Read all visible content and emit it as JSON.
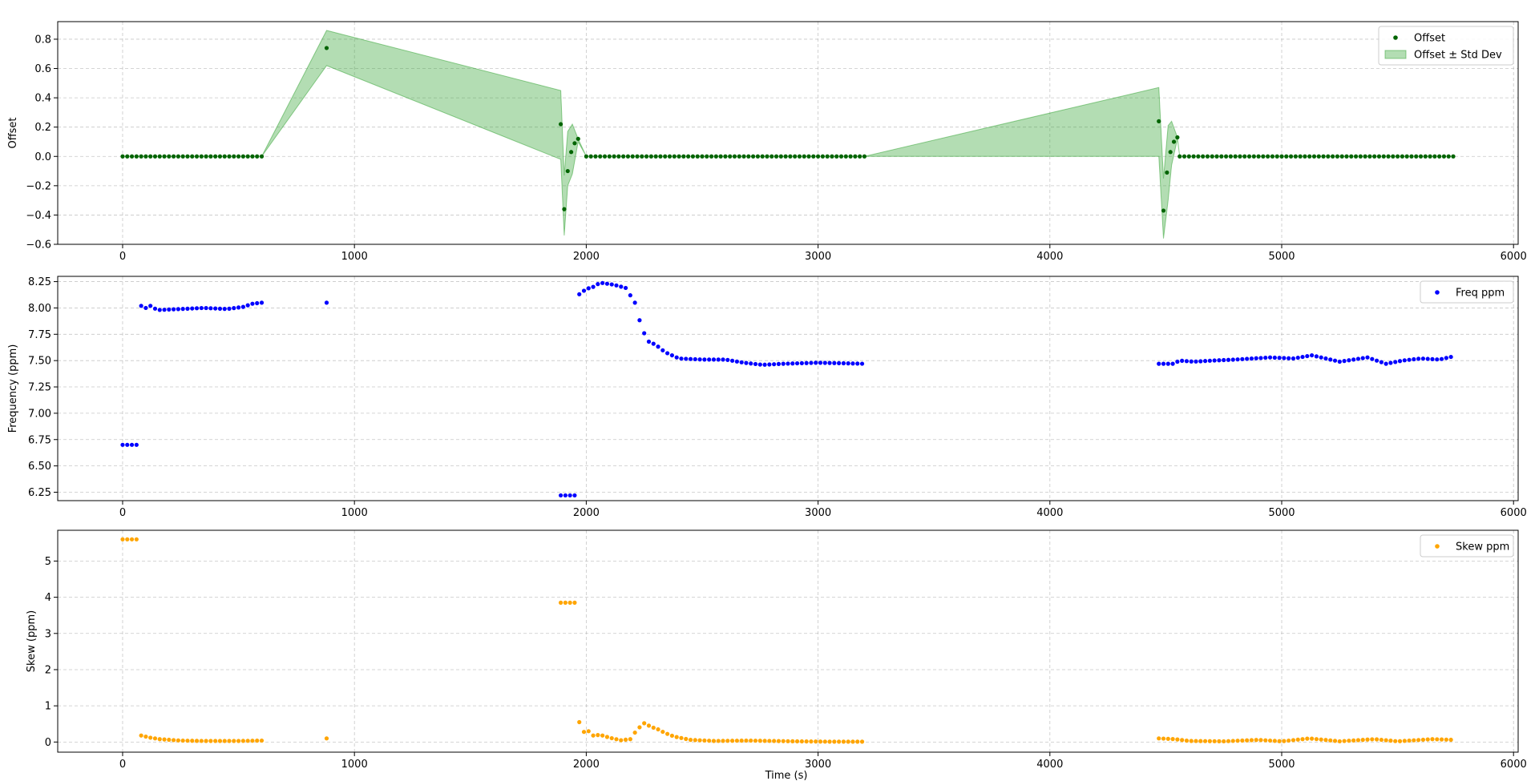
{
  "chart_data": [
    {
      "type": "scatter",
      "ylabel": "Offset",
      "xlabel": "",
      "xlim": [
        -280,
        6020
      ],
      "ylim": [
        -0.6,
        0.92
      ],
      "xticks": [
        0,
        1000,
        2000,
        3000,
        4000,
        5000,
        6000
      ],
      "xtick_labels": [
        "0",
        "1000",
        "2000",
        "3000",
        "4000",
        "5000",
        "6000"
      ],
      "yticks": [
        -0.6,
        -0.4,
        -0.2,
        0.0,
        0.2,
        0.4,
        0.6,
        0.8
      ],
      "ytick_labels": [
        "−0.6",
        "−0.4",
        "−0.2",
        "0.0",
        "0.2",
        "0.4",
        "0.6",
        "0.8"
      ],
      "grid": true,
      "legend_position": "upper-right",
      "legend": [
        {
          "label": "Offset",
          "kind": "point",
          "color": "#006400"
        },
        {
          "label": "Offset ± Std Dev",
          "kind": "patch",
          "color": "#2ca02c"
        }
      ],
      "series": [
        {
          "name": "Offset",
          "color": "#006400",
          "runs": [
            {
              "start": 0,
              "end": 600,
              "step": 20,
              "y": 0.0
            },
            {
              "start": 2000,
              "end": 3200,
              "step": 20,
              "y": 0.0
            },
            {
              "start": 4560,
              "end": 5740,
              "step": 20,
              "y": 0.0
            }
          ],
          "points": [
            [
              880,
              0.74
            ],
            [
              1890,
              0.22
            ],
            [
              1905,
              -0.36
            ],
            [
              1920,
              -0.1
            ],
            [
              1935,
              0.03
            ],
            [
              1950,
              0.09
            ],
            [
              1965,
              0.12
            ],
            [
              4470,
              0.24
            ],
            [
              4490,
              -0.37
            ],
            [
              4505,
              -0.11
            ],
            [
              4520,
              0.03
            ],
            [
              4535,
              0.1
            ],
            [
              4550,
              0.13
            ]
          ]
        }
      ],
      "band": {
        "name": "Offset ± Std Dev",
        "color": "#2ca02c",
        "opacity": 0.36,
        "upper": [
          [
            0,
            0
          ],
          [
            600,
            0
          ],
          [
            880,
            0.86
          ],
          [
            1890,
            0.45
          ],
          [
            1905,
            -0.13
          ],
          [
            1920,
            0.17
          ],
          [
            1940,
            0.22
          ],
          [
            1965,
            0.12
          ],
          [
            2000,
            0
          ],
          [
            3200,
            0
          ],
          [
            4470,
            0.47
          ],
          [
            4490,
            -0.15
          ],
          [
            4510,
            0.21
          ],
          [
            4525,
            0.24
          ],
          [
            4550,
            0.13
          ],
          [
            4560,
            0
          ],
          [
            5740,
            0
          ]
        ],
        "lower": [
          [
            0,
            0
          ],
          [
            600,
            0
          ],
          [
            880,
            0.62
          ],
          [
            1890,
            -0.02
          ],
          [
            1905,
            -0.54
          ],
          [
            1920,
            -0.2
          ],
          [
            1940,
            -0.12
          ],
          [
            1965,
            0.1
          ],
          [
            2000,
            0
          ],
          [
            3200,
            0
          ],
          [
            4470,
            0.0
          ],
          [
            4490,
            -0.56
          ],
          [
            4510,
            -0.3
          ],
          [
            4525,
            -0.06
          ],
          [
            4550,
            0.12
          ],
          [
            4560,
            0
          ],
          [
            5740,
            0
          ]
        ]
      }
    },
    {
      "type": "scatter",
      "ylabel": "Frequency (ppm)",
      "xlabel": "",
      "xlim": [
        -280,
        6020
      ],
      "ylim": [
        6.17,
        8.3
      ],
      "xticks": [
        0,
        1000,
        2000,
        3000,
        4000,
        5000,
        6000
      ],
      "xtick_labels": [
        "0",
        "1000",
        "2000",
        "3000",
        "4000",
        "5000",
        "6000"
      ],
      "yticks": [
        6.25,
        6.5,
        6.75,
        7.0,
        7.25,
        7.5,
        7.75,
        8.0,
        8.25
      ],
      "ytick_labels": [
        "6.25",
        "6.50",
        "6.75",
        "7.00",
        "7.25",
        "7.50",
        "7.75",
        "8.00",
        "8.25"
      ],
      "grid": true,
      "legend_position": "upper-right",
      "legend": [
        {
          "label": "Freq ppm",
          "kind": "point",
          "color": "#0000ff"
        }
      ],
      "series": [
        {
          "name": "Freq ppm",
          "color": "#0000ff",
          "segments": [
            {
              "start": 0,
              "end": 60,
              "step": 20,
              "knots": [
                [
                  0,
                  6.7
                ],
                [
                  60,
                  6.7
                ]
              ]
            },
            {
              "start": 80,
              "end": 600,
              "step": 20,
              "knots": [
                [
                  80,
                  8.02
                ],
                [
                  100,
                  8.0
                ],
                [
                  120,
                  8.02
                ],
                [
                  150,
                  7.98
                ],
                [
                  250,
                  7.99
                ],
                [
                  350,
                  8.0
                ],
                [
                  450,
                  7.99
                ],
                [
                  520,
                  8.01
                ],
                [
                  560,
                  8.04
                ],
                [
                  600,
                  8.05
                ]
              ]
            },
            {
              "start": 880,
              "end": 880,
              "step": 20,
              "knots": [
                [
                  880,
                  8.05
                ]
              ]
            },
            {
              "start": 1890,
              "end": 1950,
              "step": 20,
              "knots": [
                [
                  1890,
                  6.22
                ],
                [
                  1950,
                  6.22
                ]
              ]
            },
            {
              "start": 1970,
              "end": 3200,
              "step": 20,
              "knots": [
                [
                  1970,
                  8.13
                ],
                [
                  2000,
                  8.18
                ],
                [
                  2030,
                  8.2
                ],
                [
                  2060,
                  8.24
                ],
                [
                  2120,
                  8.22
                ],
                [
                  2170,
                  8.19
                ],
                [
                  2210,
                  8.05
                ],
                [
                  2240,
                  7.8
                ],
                [
                  2270,
                  7.68
                ],
                [
                  2300,
                  7.65
                ],
                [
                  2340,
                  7.58
                ],
                [
                  2400,
                  7.52
                ],
                [
                  2500,
                  7.51
                ],
                [
                  2600,
                  7.51
                ],
                [
                  2680,
                  7.48
                ],
                [
                  2760,
                  7.46
                ],
                [
                  2850,
                  7.47
                ],
                [
                  3000,
                  7.48
                ],
                [
                  3200,
                  7.47
                ]
              ]
            },
            {
              "start": 4470,
              "end": 5740,
              "step": 20,
              "knots": [
                [
                  4470,
                  7.47
                ],
                [
                  4530,
                  7.47
                ],
                [
                  4560,
                  7.5
                ],
                [
                  4620,
                  7.49
                ],
                [
                  4700,
                  7.5
                ],
                [
                  4800,
                  7.51
                ],
                [
                  4950,
                  7.53
                ],
                [
                  5050,
                  7.52
                ],
                [
                  5130,
                  7.55
                ],
                [
                  5250,
                  7.49
                ],
                [
                  5370,
                  7.53
                ],
                [
                  5450,
                  7.47
                ],
                [
                  5520,
                  7.5
                ],
                [
                  5600,
                  7.52
                ],
                [
                  5680,
                  7.51
                ],
                [
                  5740,
                  7.54
                ]
              ]
            }
          ]
        }
      ]
    },
    {
      "type": "scatter",
      "ylabel": "Skew (ppm)",
      "xlabel": "Time (s)",
      "xlim": [
        -280,
        6020
      ],
      "ylim": [
        -0.28,
        5.85
      ],
      "xticks": [
        0,
        1000,
        2000,
        3000,
        4000,
        5000,
        6000
      ],
      "xtick_labels": [
        "0",
        "1000",
        "2000",
        "3000",
        "4000",
        "5000",
        "6000"
      ],
      "yticks": [
        0,
        1,
        2,
        3,
        4,
        5
      ],
      "ytick_labels": [
        "0",
        "1",
        "2",
        "3",
        "4",
        "5"
      ],
      "grid": true,
      "legend_position": "upper-right",
      "legend": [
        {
          "label": "Skew ppm",
          "kind": "point",
          "color": "#ffa500"
        }
      ],
      "series": [
        {
          "name": "Skew ppm",
          "color": "#ffa500",
          "segments": [
            {
              "start": 0,
              "end": 60,
              "step": 20,
              "knots": [
                [
                  0,
                  5.6
                ],
                [
                  60,
                  5.6
                ]
              ]
            },
            {
              "start": 80,
              "end": 600,
              "step": 20,
              "knots": [
                [
                  80,
                  0.18
                ],
                [
                  120,
                  0.12
                ],
                [
                  160,
                  0.08
                ],
                [
                  250,
                  0.04
                ],
                [
                  350,
                  0.03
                ],
                [
                  500,
                  0.03
                ],
                [
                  600,
                  0.04
                ]
              ]
            },
            {
              "start": 880,
              "end": 880,
              "step": 20,
              "knots": [
                [
                  880,
                  0.1
                ]
              ]
            },
            {
              "start": 1890,
              "end": 1950,
              "step": 20,
              "knots": [
                [
                  1890,
                  3.85
                ],
                [
                  1950,
                  3.85
                ]
              ]
            },
            {
              "start": 1970,
              "end": 3200,
              "step": 20,
              "knots": [
                [
                  1970,
                  0.55
                ],
                [
                  1990,
                  0.28
                ],
                [
                  2010,
                  0.3
                ],
                [
                  2030,
                  0.18
                ],
                [
                  2060,
                  0.2
                ],
                [
                  2100,
                  0.12
                ],
                [
                  2150,
                  0.05
                ],
                [
                  2190,
                  0.08
                ],
                [
                  2220,
                  0.35
                ],
                [
                  2250,
                  0.52
                ],
                [
                  2280,
                  0.42
                ],
                [
                  2310,
                  0.35
                ],
                [
                  2340,
                  0.25
                ],
                [
                  2380,
                  0.15
                ],
                [
                  2450,
                  0.06
                ],
                [
                  2550,
                  0.03
                ],
                [
                  2700,
                  0.04
                ],
                [
                  2900,
                  0.02
                ],
                [
                  3050,
                  0.01
                ],
                [
                  3200,
                  0.01
                ]
              ]
            },
            {
              "start": 4470,
              "end": 5740,
              "step": 20,
              "knots": [
                [
                  4470,
                  0.1
                ],
                [
                  4540,
                  0.08
                ],
                [
                  4600,
                  0.03
                ],
                [
                  4750,
                  0.02
                ],
                [
                  4900,
                  0.06
                ],
                [
                  5000,
                  0.02
                ],
                [
                  5120,
                  0.1
                ],
                [
                  5250,
                  0.02
                ],
                [
                  5400,
                  0.08
                ],
                [
                  5500,
                  0.02
                ],
                [
                  5650,
                  0.08
                ],
                [
                  5740,
                  0.06
                ]
              ]
            }
          ]
        }
      ]
    }
  ]
}
